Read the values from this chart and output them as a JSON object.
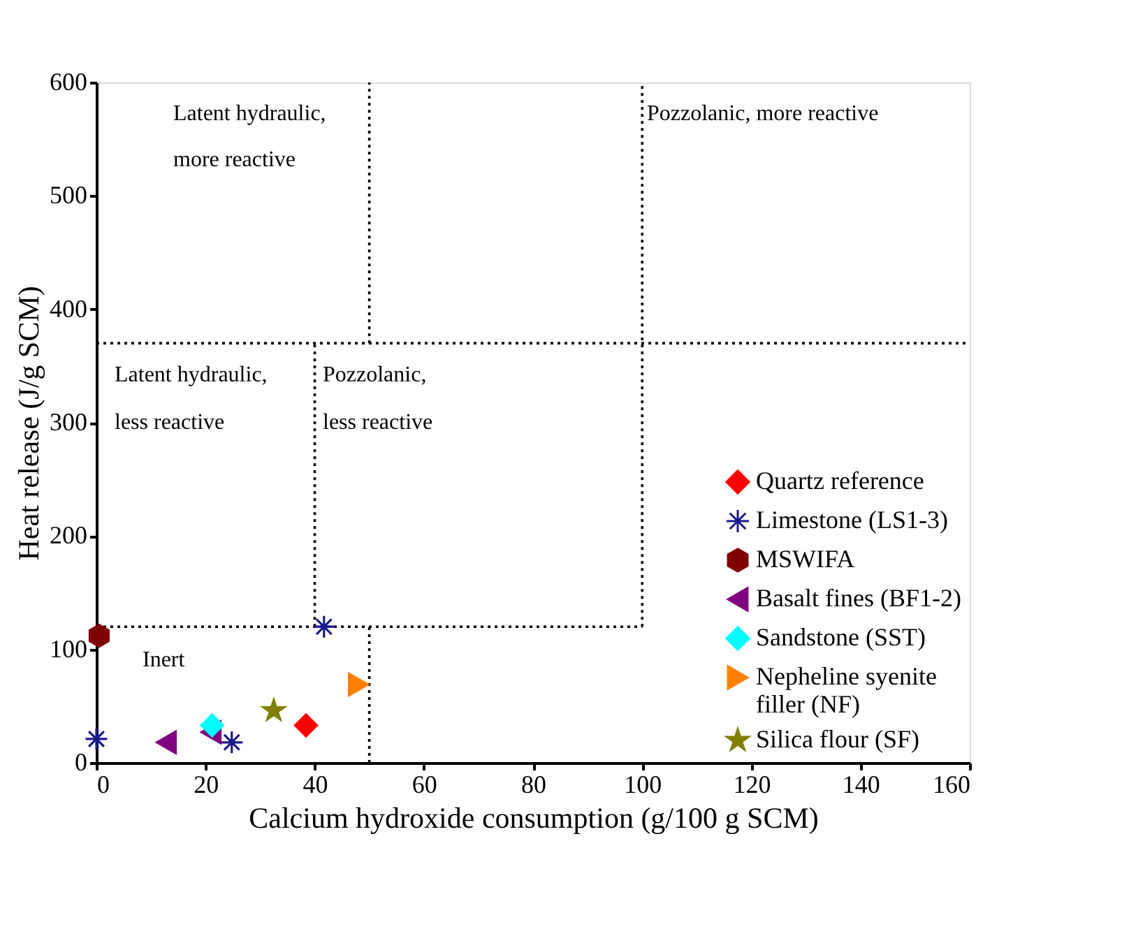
{
  "chart_data": {
    "type": "scatter",
    "xlabel": "Calcium hydroxide consumption (g/100 g SCM)",
    "ylabel": "Heat release (J/g SCM)",
    "xlim": [
      0,
      160
    ],
    "xticks": [
      0,
      20,
      40,
      60,
      80,
      100,
      120,
      140,
      160
    ],
    "ylim": [
      0,
      600
    ],
    "yticks": [
      0,
      100,
      200,
      300,
      400,
      500,
      600
    ],
    "grid": false,
    "legend": "bottom right",
    "series": [
      {
        "name": "Quartz reference",
        "color": "#ff0000",
        "marker": "diamond",
        "x": [
          38.4
        ],
        "values": [
          33
        ]
      },
      {
        "name": "Limestone (LS1-3)",
        "color": "#1a1a8c",
        "marker": "cross",
        "x": [
          0,
          24.8,
          41.7
        ],
        "values": [
          21,
          18,
          120
        ]
      },
      {
        "name": "MSWIFA",
        "color": "#800000",
        "x": [
          0.5
        ],
        "values": [
          112
        ]
      },
      {
        "name": "Basalt fines (BF1-2)",
        "color": "#800080",
        "marker": "triangle-left",
        "x": [
          12.8,
          21
        ],
        "values": [
          18,
          27
        ]
      },
      {
        "name": "Sandstone (SST)",
        "color": "#00ffff",
        "marker": "diamond",
        "x": [
          21.2
        ],
        "values": [
          33
        ]
      },
      {
        "name": "Nepheline syenite\nfiller (NF)",
        "color": "#ff8000",
        "marker": "triangle-right",
        "x": [
          48
        ],
        "values": [
          69
        ]
      },
      {
        "name": "Silica flour (SF)",
        "color": "#808000",
        "marker": "star",
        "x": [
          32.5
        ],
        "values": [
          46
        ]
      },
      {
        "type": "line",
        "color": "#000000",
        "line_style": "dotted",
        "x": [
          50,
          50
        ],
        "values": [
          370,
          600
        ]
      },
      {
        "type": "line",
        "color": "#000000",
        "line_style": "dotted",
        "x": [
          50,
          50
        ],
        "values": [
          0,
          120
        ]
      },
      {
        "type": "line",
        "color": "#000000",
        "line_style": "dotted",
        "x": [
          40,
          40
        ],
        "values": [
          120,
          370
        ]
      },
      {
        "type": "line",
        "color": "#000000",
        "line_style": "dotted",
        "x": [
          100,
          100
        ],
        "values": [
          120,
          600
        ]
      },
      {
        "type": "line",
        "color": "#000000",
        "line_style": "dotted",
        "x": [
          0,
          160
        ],
        "values": [
          370,
          370
        ]
      },
      {
        "type": "line",
        "color": "#000000",
        "line_style": "dotted",
        "x": [
          0,
          100
        ],
        "values": [
          120,
          120
        ]
      }
    ],
    "annotations": [
      "Latent hydraulic,",
      "more reactive",
      "Pozzolanic, more reactive",
      "Latent hydraulic,",
      "less reactive",
      "Pozzolanic,",
      "less reactive",
      "Inert"
    ]
  }
}
